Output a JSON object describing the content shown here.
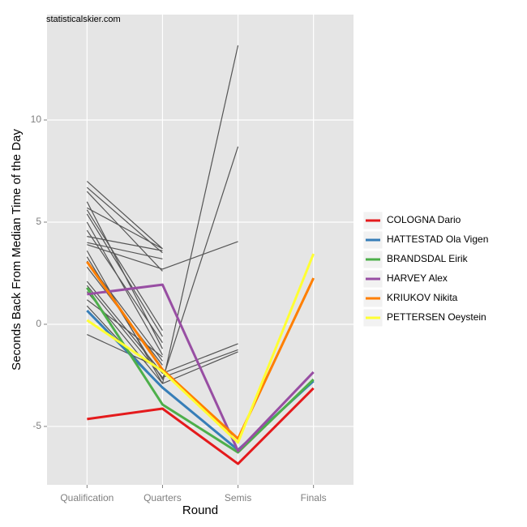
{
  "chart_data": {
    "type": "line",
    "title": "statisticalskier.com",
    "x_label": "Round",
    "y_label": "Seconds Back From Median Time of the Day",
    "categories": [
      "Qualification",
      "Quarters",
      "Semis",
      "Finals"
    ],
    "ylim": [
      -7.86,
      15.16
    ],
    "yticks": [
      -5,
      0,
      5,
      10
    ],
    "grid": true,
    "legend": "right",
    "series": [
      {
        "color": "#555555",
        "values": [
          7.0,
          3.7,
          null,
          null
        ]
      },
      {
        "color": "#555555",
        "values": [
          6.7,
          3.5,
          null,
          null
        ]
      },
      {
        "color": "#555555",
        "values": [
          6.5,
          2.6,
          null,
          null
        ]
      },
      {
        "color": "#555555",
        "values": [
          6.0,
          -1.2,
          null,
          null
        ]
      },
      {
        "color": "#555555",
        "values": [
          5.7,
          3.7,
          null,
          null
        ]
      },
      {
        "color": "#555555",
        "values": [
          5.6,
          -0.3,
          null,
          null
        ]
      },
      {
        "color": "#555555",
        "values": [
          5.4,
          -0.6,
          null,
          null
        ]
      },
      {
        "color": "#555555",
        "values": [
          5.0,
          -1.5,
          null,
          null
        ]
      },
      {
        "color": "#555555",
        "values": [
          4.6,
          -0.9,
          null,
          null
        ]
      },
      {
        "color": "#555555",
        "values": [
          4.3,
          3.6,
          null,
          null
        ]
      },
      {
        "color": "#555555",
        "values": [
          4.0,
          3.2,
          null,
          null
        ]
      },
      {
        "color": "#555555",
        "values": [
          3.9,
          2.7,
          4.05,
          null
        ]
      },
      {
        "color": "#555555",
        "values": [
          3.6,
          -2.9,
          13.65,
          null
        ]
      },
      {
        "color": "#555555",
        "values": [
          3.3,
          -2.7,
          8.7,
          null
        ]
      },
      {
        "color": "#555555",
        "values": [
          3.1,
          -1.8,
          null,
          null
        ]
      },
      {
        "color": "#555555",
        "values": [
          2.8,
          -2.0,
          null,
          null
        ]
      },
      {
        "color": "#555555",
        "values": [
          2.1,
          -2.4,
          -0.95,
          null
        ]
      },
      {
        "color": "#555555",
        "values": [
          1.9,
          -2.6,
          -1.25,
          null
        ]
      },
      {
        "color": "#555555",
        "values": [
          1.6,
          -2.9,
          -1.35,
          null
        ]
      },
      {
        "color": "#555555",
        "values": [
          1.2,
          -1.6,
          null,
          null
        ]
      },
      {
        "color": "#555555",
        "values": [
          0.9,
          -3.1,
          null,
          null
        ]
      },
      {
        "color": "#555555",
        "values": [
          -0.5,
          -2.2,
          null,
          null
        ]
      },
      {
        "name": "COLOGNA Dario",
        "color": "#e41a1c",
        "values": [
          -4.64,
          -4.13,
          -6.83,
          -3.13
        ]
      },
      {
        "name": "HATTESTAD Ola Vigen",
        "color": "#377eb8",
        "values": [
          0.67,
          -3.1,
          -6.15,
          -2.78
        ]
      },
      {
        "name": "BRANDSDAL Eirik",
        "color": "#4daf4a",
        "values": [
          1.79,
          -3.93,
          -6.27,
          -2.7
        ]
      },
      {
        "name": "HARVEY Alex",
        "color": "#984ea3",
        "values": [
          1.47,
          1.94,
          -6.2,
          -2.34
        ]
      },
      {
        "name": "KRIUKOV Nikita",
        "color": "#ff7f00",
        "values": [
          3.06,
          -2.22,
          -5.6,
          2.26
        ]
      },
      {
        "name": "PETTERSEN Oeystein",
        "color": "#ffff33",
        "values": [
          0.2,
          -2.3,
          -5.79,
          3.45
        ]
      }
    ]
  }
}
